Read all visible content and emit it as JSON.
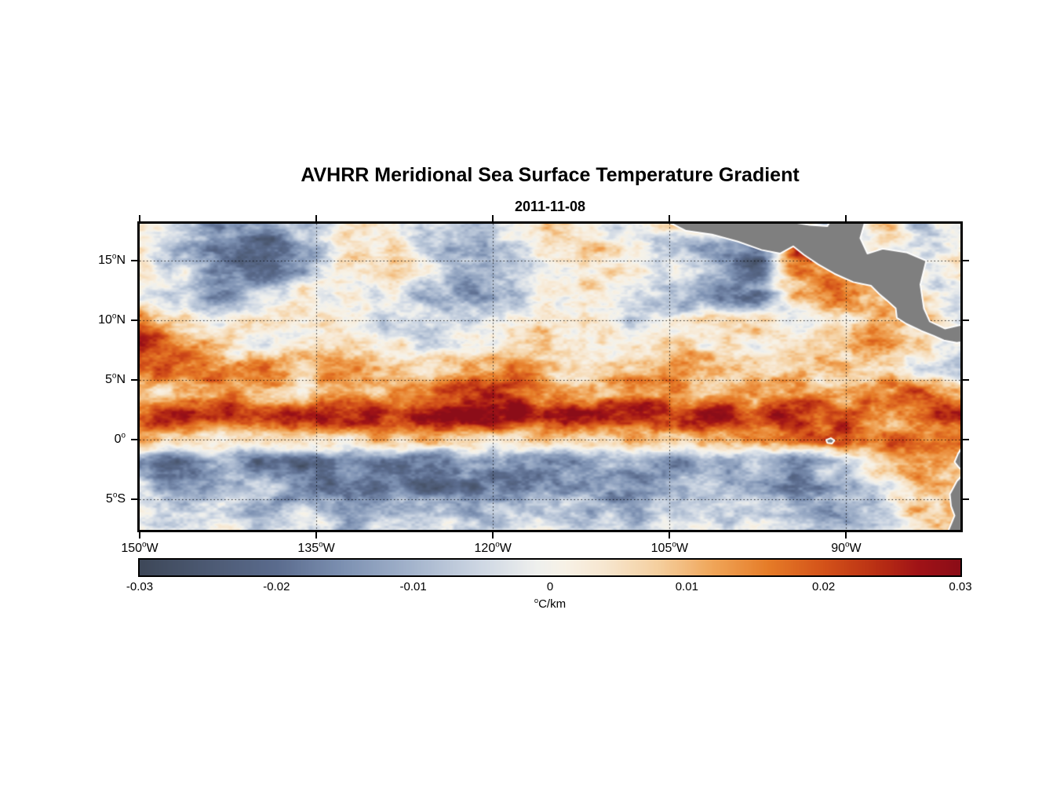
{
  "title": "AVHRR Meridional Sea Surface Temperature Gradient",
  "subtitle": "2011-11-08",
  "chart_data": {
    "type": "heatmap",
    "title": "AVHRR Meridional Sea Surface Temperature Gradient",
    "subtitle": "2011-11-08",
    "lon_min": -150,
    "lon_max": -80.3,
    "lat_top": 18.1,
    "lat_bottom": -7.6,
    "lat_ticks": [
      {
        "label": "15°N",
        "lat": 15
      },
      {
        "label": "10°N",
        "lat": 10
      },
      {
        "label": "5°N",
        "lat": 5
      },
      {
        "label": "0°",
        "lat": 0
      },
      {
        "label": "5°S",
        "lat": -5
      }
    ],
    "lon_ticks": [
      {
        "label": "150°W",
        "lon": -150
      },
      {
        "label": "135°W",
        "lon": -135
      },
      {
        "label": "120°W",
        "lon": -120
      },
      {
        "label": "105°W",
        "lon": -105
      },
      {
        "label": "90°W",
        "lon": -90
      }
    ],
    "grid_lats": [
      15,
      10,
      5,
      0,
      -5
    ],
    "grid_lons": [
      -135,
      -120,
      -105,
      -90
    ],
    "grid_style": "dotted",
    "colorbar": {
      "min": -0.03,
      "max": 0.03,
      "tick_labels": [
        "-0.03",
        "-0.02",
        "-0.01",
        "0",
        "0.01",
        "0.02",
        "0.03"
      ],
      "unit": "°C/km",
      "orientation": "horizontal",
      "stops": [
        {
          "v": -0.03,
          "c": "#3e4859"
        },
        {
          "v": -0.02,
          "c": "#5b6c8e"
        },
        {
          "v": -0.015,
          "c": "#7e92b3"
        },
        {
          "v": -0.01,
          "c": "#a5b5cd"
        },
        {
          "v": -0.005,
          "c": "#cfd8e4"
        },
        {
          "v": -0.001,
          "c": "#eff0ee"
        },
        {
          "v": 0.001,
          "c": "#f7f2e7"
        },
        {
          "v": 0.004,
          "c": "#f7e7d0"
        },
        {
          "v": 0.008,
          "c": "#f5cf9e"
        },
        {
          "v": 0.012,
          "c": "#f0a558"
        },
        {
          "v": 0.016,
          "c": "#e67c28"
        },
        {
          "v": 0.02,
          "c": "#d4531a"
        },
        {
          "v": 0.024,
          "c": "#b92f14"
        },
        {
          "v": 0.027,
          "c": "#a01317"
        },
        {
          "v": 0.03,
          "c": "#8c0d18"
        }
      ]
    },
    "field": {
      "units": "°C/km",
      "value_range": [
        -0.03,
        0.03
      ],
      "lon0": -150,
      "dlon": 3.5,
      "lat0": 18,
      "dlat": -2,
      "values": [
        [
          0.004,
          -0.004,
          -0.015,
          -0.018,
          -0.006,
          0.004,
          0.002,
          -0.006,
          -0.014,
          -0.004,
          0.005,
          0.002,
          -0.004,
          0.003,
          0.004,
          -0.006,
          0.005,
          -0.004,
          0.006,
          -0.008,
          0.004
        ],
        [
          -0.002,
          -0.008,
          -0.02,
          -0.022,
          -0.012,
          0.003,
          0.006,
          -0.004,
          -0.012,
          -0.006,
          0.004,
          0.006,
          0.002,
          -0.006,
          -0.012,
          -0.02,
          0.024,
          -0.006,
          0.005,
          -0.004,
          0.006
        ],
        [
          0.002,
          -0.004,
          -0.016,
          -0.02,
          -0.01,
          0.002,
          0.004,
          -0.002,
          -0.012,
          -0.008,
          0.002,
          0.005,
          0.003,
          -0.004,
          -0.01,
          -0.02,
          0.012,
          0.015,
          0.004,
          -0.004,
          0.004
        ],
        [
          0.003,
          -0.01,
          -0.012,
          -0.004,
          0.004,
          0.002,
          -0.003,
          -0.01,
          -0.014,
          -0.006,
          0.003,
          0.004,
          -0.002,
          -0.008,
          -0.02,
          -0.016,
          0.01,
          0.02,
          0.01,
          0.002,
          -0.004
        ],
        [
          0.012,
          0.004,
          -0.002,
          0.003,
          0.006,
          0.002,
          -0.004,
          -0.006,
          -0.002,
          0.004,
          0.006,
          0.002,
          -0.004,
          -0.002,
          0.004,
          0.008,
          -0.006,
          0.004,
          0.012,
          0.008,
          -0.004
        ],
        [
          0.026,
          0.016,
          0.004,
          -0.004,
          0.002,
          0.006,
          0.003,
          -0.002,
          0.004,
          0.002,
          0.006,
          0.004,
          0.002,
          0.006,
          0.004,
          0.002,
          0.006,
          0.01,
          0.014,
          0.006,
          -0.004
        ],
        [
          0.018,
          0.02,
          0.014,
          0.016,
          0.01,
          0.016,
          0.008,
          0.006,
          0.01,
          0.014,
          0.006,
          0.004,
          0.008,
          0.012,
          0.012,
          0.006,
          0.004,
          0.008,
          0.004,
          -0.006,
          -0.01
        ],
        [
          0.01,
          0.008,
          0.012,
          0.008,
          0.006,
          0.01,
          0.012,
          0.016,
          0.02,
          0.022,
          0.012,
          0.01,
          0.016,
          0.012,
          0.008,
          0.012,
          0.014,
          0.01,
          0.016,
          0.02,
          0.012
        ],
        [
          0.02,
          0.022,
          0.024,
          0.022,
          0.026,
          0.028,
          0.024,
          0.028,
          0.03,
          0.028,
          0.026,
          0.028,
          0.026,
          0.024,
          0.026,
          0.022,
          0.024,
          0.02,
          0.012,
          0.018,
          0.022
        ],
        [
          0.012,
          0.008,
          0.006,
          0.01,
          0.008,
          0.006,
          0.01,
          0.012,
          0.008,
          0.006,
          0.01,
          0.008,
          0.012,
          0.01,
          0.008,
          0.012,
          0.016,
          0.02,
          0.018,
          0.014,
          0.016
        ],
        [
          -0.016,
          -0.02,
          -0.014,
          -0.02,
          -0.022,
          -0.016,
          -0.02,
          -0.022,
          -0.016,
          -0.012,
          -0.018,
          -0.014,
          -0.012,
          -0.016,
          -0.012,
          -0.008,
          -0.014,
          -0.006,
          0.01,
          0.014,
          0.01
        ],
        [
          -0.006,
          -0.014,
          -0.01,
          -0.008,
          -0.016,
          -0.022,
          -0.018,
          -0.024,
          -0.02,
          -0.016,
          -0.016,
          -0.014,
          -0.018,
          -0.012,
          -0.008,
          -0.012,
          -0.016,
          -0.01,
          -0.004,
          0.012,
          0.008
        ],
        [
          -0.004,
          -0.008,
          -0.004,
          -0.01,
          -0.006,
          -0.012,
          -0.008,
          -0.006,
          -0.012,
          -0.008,
          -0.004,
          -0.008,
          -0.01,
          -0.006,
          -0.008,
          -0.004,
          -0.008,
          -0.012,
          -0.006,
          0.008,
          0.014
        ],
        [
          0.002,
          -0.004,
          0.002,
          -0.006,
          -0.002,
          -0.008,
          -0.004,
          -0.002,
          -0.006,
          -0.004,
          0.002,
          -0.004,
          -0.006,
          -0.002,
          -0.004,
          0.002,
          -0.004,
          -0.008,
          -0.002,
          0.006,
          0.01
        ]
      ]
    },
    "land": {
      "color": "#7f7f7f",
      "coast_color": "#ffffff",
      "polygons": {
        "central_america": [
          [
            -105.8,
            18.6
          ],
          [
            -103.6,
            17.5
          ],
          [
            -101.4,
            17.2
          ],
          [
            -99.2,
            16.6
          ],
          [
            -97.2,
            15.9
          ],
          [
            -95.6,
            15.6
          ],
          [
            -94.5,
            16.2
          ],
          [
            -93.6,
            15.5
          ],
          [
            -92.4,
            14.7
          ],
          [
            -91.0,
            13.9
          ],
          [
            -89.4,
            13.2
          ],
          [
            -87.9,
            12.9
          ],
          [
            -87.2,
            12.2
          ],
          [
            -86.6,
            11.7
          ],
          [
            -85.8,
            11.0
          ],
          [
            -85.7,
            10.2
          ],
          [
            -84.9,
            9.7
          ],
          [
            -83.6,
            9.1
          ],
          [
            -82.6,
            8.7
          ],
          [
            -81.7,
            8.3
          ],
          [
            -80.6,
            8.1
          ],
          [
            -79.0,
            8.4
          ],
          [
            -79.0,
            9.9
          ],
          [
            -81.6,
            9.3
          ],
          [
            -82.9,
            9.9
          ],
          [
            -83.4,
            11.0
          ],
          [
            -83.7,
            13.0
          ],
          [
            -83.2,
            15.0
          ],
          [
            -84.9,
            15.7
          ],
          [
            -86.9,
            16.0
          ],
          [
            -88.2,
            15.6
          ],
          [
            -88.8,
            16.9
          ],
          [
            -88.3,
            18.6
          ],
          [
            -91.2,
            18.6
          ],
          [
            -91.6,
            17.9
          ],
          [
            -93.1,
            18.0
          ],
          [
            -94.4,
            18.2
          ],
          [
            -94.9,
            18.6
          ]
        ],
        "south_america": [
          [
            -79.0,
            -0.1
          ],
          [
            -80.1,
            -0.6
          ],
          [
            -80.5,
            -1.2
          ],
          [
            -80.8,
            -1.9
          ],
          [
            -80.4,
            -2.4
          ],
          [
            -79.9,
            -2.8
          ],
          [
            -80.6,
            -3.5
          ],
          [
            -81.2,
            -4.6
          ],
          [
            -81.1,
            -5.6
          ],
          [
            -80.8,
            -6.4
          ],
          [
            -81.3,
            -7.6
          ],
          [
            -81.1,
            -8.6
          ],
          [
            -79.0,
            -8.6
          ]
        ],
        "galapagos": [
          [
            -91.7,
            -0.05
          ],
          [
            -91.3,
            0.1
          ],
          [
            -91.0,
            -0.1
          ],
          [
            -91.2,
            -0.35
          ],
          [
            -91.6,
            -0.3
          ]
        ]
      }
    }
  }
}
